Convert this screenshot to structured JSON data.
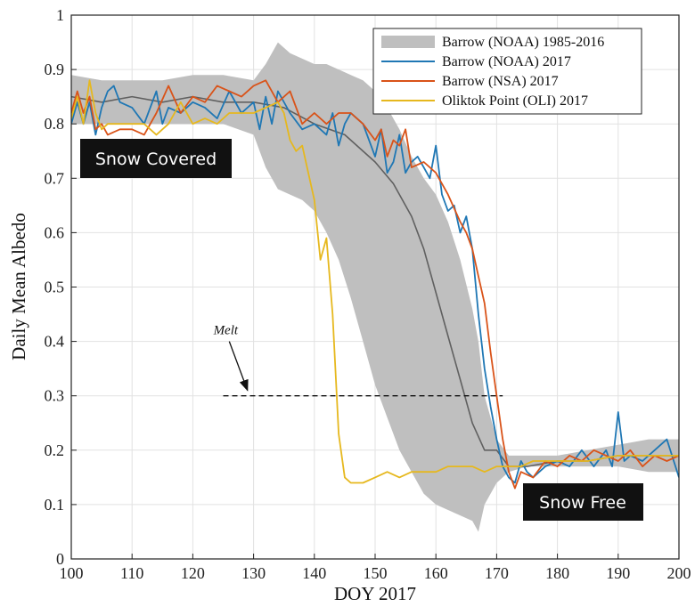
{
  "chart_data": {
    "type": "line",
    "xlabel": "DOY 2017",
    "ylabel": "Daily Mean Albedo",
    "xlim": [
      100,
      200
    ],
    "ylim": [
      0,
      1
    ],
    "xticks": [
      "100",
      "110",
      "120",
      "130",
      "140",
      "150",
      "160",
      "170",
      "180",
      "190",
      "200"
    ],
    "yticks": [
      "0",
      "0.1",
      "0.2",
      "0.3",
      "0.4",
      "0.5",
      "0.6",
      "0.7",
      "0.8",
      "0.9",
      "1"
    ],
    "grid": true,
    "legend_position": "top-right",
    "band": {
      "name": "Barrow (NOAA) 1985-2016",
      "color": "#bfbfbf",
      "x": [
        100,
        105,
        110,
        115,
        120,
        125,
        130,
        132,
        134,
        136,
        138,
        140,
        142,
        144,
        146,
        148,
        150,
        152,
        154,
        156,
        158,
        160,
        162,
        164,
        166,
        167,
        168,
        170,
        172,
        175,
        180,
        185,
        190,
        195,
        200
      ],
      "upper": [
        0.89,
        0.88,
        0.88,
        0.88,
        0.89,
        0.89,
        0.88,
        0.91,
        0.95,
        0.93,
        0.92,
        0.91,
        0.91,
        0.9,
        0.89,
        0.88,
        0.86,
        0.83,
        0.79,
        0.74,
        0.7,
        0.67,
        0.62,
        0.55,
        0.46,
        0.4,
        0.3,
        0.22,
        0.19,
        0.19,
        0.19,
        0.2,
        0.21,
        0.22,
        0.22
      ],
      "lower": [
        0.8,
        0.8,
        0.8,
        0.8,
        0.8,
        0.8,
        0.78,
        0.72,
        0.68,
        0.67,
        0.66,
        0.64,
        0.6,
        0.55,
        0.48,
        0.4,
        0.32,
        0.26,
        0.2,
        0.16,
        0.12,
        0.1,
        0.09,
        0.08,
        0.07,
        0.05,
        0.1,
        0.14,
        0.16,
        0.17,
        0.17,
        0.17,
        0.17,
        0.16,
        0.16
      ]
    },
    "series": [
      {
        "name": "Barrow (NOAA) 1985-2016 mean",
        "color": "#606060",
        "x": [
          100,
          105,
          110,
          115,
          120,
          125,
          130,
          135,
          140,
          145,
          150,
          153,
          156,
          158,
          160,
          162,
          164,
          166,
          168,
          170,
          172,
          175,
          180,
          185,
          190,
          195,
          200
        ],
        "y": [
          0.85,
          0.84,
          0.85,
          0.84,
          0.85,
          0.84,
          0.84,
          0.83,
          0.8,
          0.78,
          0.73,
          0.69,
          0.63,
          0.57,
          0.49,
          0.41,
          0.33,
          0.25,
          0.2,
          0.2,
          0.17,
          0.17,
          0.18,
          0.18,
          0.19,
          0.19,
          0.19
        ]
      },
      {
        "name": "Barrow (NOAA) 2017",
        "color": "#1f77b4",
        "x": [
          100,
          101,
          102,
          103,
          104,
          105,
          106,
          107,
          108,
          110,
          112,
          114,
          115,
          116,
          118,
          120,
          122,
          124,
          126,
          128,
          130,
          131,
          132,
          133,
          134,
          136,
          138,
          140,
          142,
          143,
          144,
          145,
          146,
          148,
          150,
          151,
          152,
          153,
          154,
          155,
          156,
          157,
          158,
          159,
          160,
          161,
          162,
          163,
          164,
          165,
          166,
          167,
          168,
          169,
          170,
          171,
          172,
          173,
          174,
          175,
          176,
          178,
          180,
          182,
          184,
          186,
          188,
          189,
          190,
          191,
          192,
          194,
          196,
          198,
          200
        ],
        "y": [
          0.8,
          0.84,
          0.8,
          0.84,
          0.78,
          0.83,
          0.86,
          0.87,
          0.84,
          0.83,
          0.8,
          0.86,
          0.8,
          0.83,
          0.82,
          0.84,
          0.83,
          0.81,
          0.86,
          0.82,
          0.84,
          0.79,
          0.85,
          0.8,
          0.86,
          0.82,
          0.79,
          0.8,
          0.78,
          0.82,
          0.76,
          0.8,
          0.82,
          0.8,
          0.74,
          0.79,
          0.71,
          0.73,
          0.78,
          0.71,
          0.73,
          0.74,
          0.72,
          0.7,
          0.76,
          0.67,
          0.64,
          0.65,
          0.6,
          0.63,
          0.57,
          0.45,
          0.35,
          0.28,
          0.22,
          0.17,
          0.15,
          0.14,
          0.18,
          0.16,
          0.15,
          0.17,
          0.18,
          0.17,
          0.2,
          0.17,
          0.2,
          0.17,
          0.27,
          0.18,
          0.19,
          0.18,
          0.2,
          0.22,
          0.15
        ]
      },
      {
        "name": "Barrow (NSA) 2017",
        "color": "#d95319",
        "x": [
          100,
          101,
          102,
          103,
          104,
          105,
          106,
          108,
          110,
          112,
          114,
          116,
          118,
          120,
          122,
          124,
          126,
          128,
          130,
          132,
          134,
          136,
          138,
          140,
          142,
          144,
          146,
          148,
          150,
          151,
          152,
          153,
          154,
          155,
          156,
          158,
          160,
          162,
          164,
          165,
          166,
          167,
          168,
          169,
          170,
          171,
          172,
          173,
          174,
          176,
          178,
          180,
          182,
          184,
          186,
          188,
          190,
          192,
          194,
          196,
          198,
          200
        ],
        "y": [
          0.82,
          0.86,
          0.82,
          0.85,
          0.79,
          0.8,
          0.78,
          0.79,
          0.79,
          0.78,
          0.82,
          0.87,
          0.82,
          0.85,
          0.84,
          0.87,
          0.86,
          0.85,
          0.87,
          0.88,
          0.84,
          0.86,
          0.8,
          0.82,
          0.8,
          0.82,
          0.82,
          0.8,
          0.77,
          0.79,
          0.74,
          0.77,
          0.76,
          0.79,
          0.72,
          0.73,
          0.71,
          0.67,
          0.62,
          0.6,
          0.57,
          0.52,
          0.47,
          0.38,
          0.3,
          0.22,
          0.16,
          0.13,
          0.16,
          0.15,
          0.18,
          0.17,
          0.19,
          0.18,
          0.2,
          0.19,
          0.18,
          0.2,
          0.17,
          0.19,
          0.18,
          0.19
        ]
      },
      {
        "name": "Oliktok Point (OLI) 2017",
        "color": "#e6b81e",
        "x": [
          100,
          101,
          102,
          103,
          104,
          105,
          106,
          108,
          110,
          112,
          114,
          116,
          118,
          120,
          122,
          124,
          126,
          128,
          130,
          132,
          134,
          135,
          136,
          137,
          138,
          139,
          140,
          141,
          142,
          143,
          144,
          145,
          146,
          147,
          148,
          150,
          152,
          154,
          156,
          158,
          160,
          162,
          164,
          166,
          168,
          170,
          172,
          174,
          176,
          180,
          185,
          190,
          195,
          200
        ],
        "y": [
          0.81,
          0.85,
          0.8,
          0.88,
          0.82,
          0.79,
          0.8,
          0.8,
          0.8,
          0.8,
          0.78,
          0.8,
          0.84,
          0.8,
          0.81,
          0.8,
          0.82,
          0.82,
          0.82,
          0.83,
          0.84,
          0.82,
          0.77,
          0.75,
          0.76,
          0.71,
          0.66,
          0.55,
          0.59,
          0.45,
          0.23,
          0.15,
          0.14,
          0.14,
          0.14,
          0.15,
          0.16,
          0.15,
          0.16,
          0.16,
          0.16,
          0.17,
          0.17,
          0.17,
          0.16,
          0.17,
          0.17,
          0.17,
          0.18,
          0.18,
          0.18,
          0.19,
          0.19,
          0.19
        ]
      }
    ],
    "legend": [
      {
        "label": "Barrow (NOAA) 1985-2016",
        "color": "#bfbfbf",
        "kind": "patch"
      },
      {
        "label": "Barrow (NOAA) 2017",
        "color": "#1f77b4",
        "kind": "line"
      },
      {
        "label": "Barrow (NSA) 2017",
        "color": "#d95319",
        "kind": "line"
      },
      {
        "label": "Oliktok Point (OLI) 2017",
        "color": "#e6b81e",
        "kind": "line"
      }
    ],
    "annotations": {
      "melt_label": "Melt",
      "melt_line": {
        "x": [
          125,
          171
        ],
        "y": 0.3
      },
      "melt_arrow": {
        "from": [
          126,
          0.4
        ],
        "to": [
          129,
          0.31
        ]
      },
      "snow_covered": "Snow Covered",
      "snow_free": "Snow Free"
    }
  }
}
